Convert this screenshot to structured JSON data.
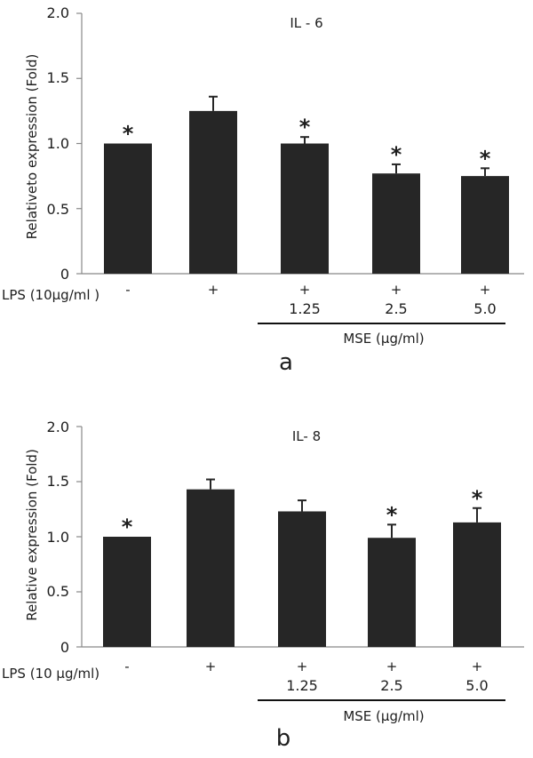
{
  "charts": [
    {
      "panel_label": "a",
      "title": "IL - 6",
      "ylabel": "Relativeto expression (Fold)",
      "row_label": "LPS (10µg/ml )",
      "group_label": "MSE (µg/ml)",
      "yticks": [
        "2.0",
        "1.5",
        "1.0",
        "0.5",
        "0"
      ]
    },
    {
      "panel_label": "b",
      "title": "IL- 8",
      "ylabel": "Relative expression (Fold)",
      "row_label": "LPS (10 µg/ml)",
      "group_label": "MSE (µg/ml)",
      "yticks": [
        "2.0",
        "1.5",
        "1.0",
        "0.5",
        "0"
      ]
    }
  ],
  "chart_data": [
    {
      "type": "bar",
      "title": "IL - 6",
      "ylabel": "Relativeto expression (Fold)",
      "xlabel": "MSE (µg/ml)",
      "ylim": [
        0,
        2.0
      ],
      "lps": [
        "-",
        "+",
        "+",
        "+",
        "+"
      ],
      "doses": [
        "",
        "",
        "1.25",
        "2.5",
        "5.0"
      ],
      "values": [
        1.0,
        1.25,
        1.0,
        0.77,
        0.75
      ],
      "errors": [
        0,
        0.11,
        0.05,
        0.07,
        0.06
      ],
      "significant": [
        true,
        false,
        true,
        true,
        true
      ],
      "bar_color": "#262626"
    },
    {
      "type": "bar",
      "title": "IL- 8",
      "ylabel": "Relative expression (Fold)",
      "xlabel": "MSE (µg/ml)",
      "ylim": [
        0,
        2.0
      ],
      "lps": [
        "-",
        "+",
        "+",
        "+",
        "+"
      ],
      "doses": [
        "",
        "",
        "1.25",
        "2.5",
        "5.0"
      ],
      "values": [
        1.0,
        1.43,
        1.23,
        0.99,
        1.13
      ],
      "errors": [
        0,
        0.09,
        0.1,
        0.12,
        0.13
      ],
      "significant": [
        true,
        false,
        false,
        true,
        true
      ],
      "bar_color": "#262626"
    }
  ]
}
